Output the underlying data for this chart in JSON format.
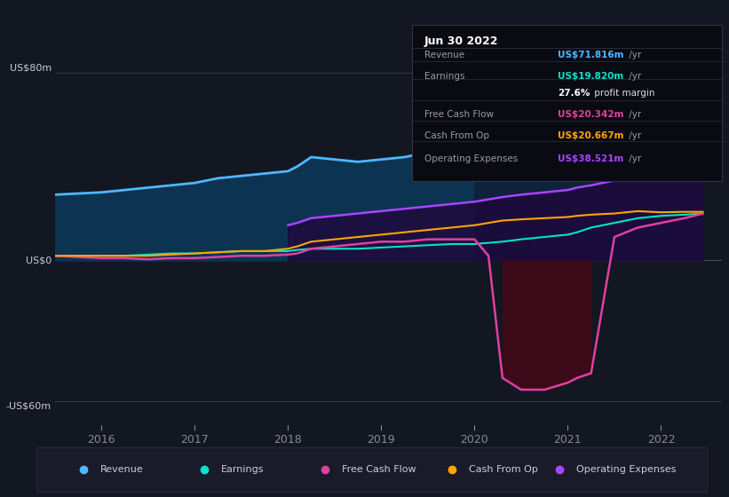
{
  "background_color": "#131722",
  "plot_bg_color": "#131722",
  "title_box": {
    "date": "Jun 30 2022",
    "rows": [
      {
        "label": "Revenue",
        "value": "US$71.816m",
        "value_color": "#4db8ff",
        "suffix": " /yr"
      },
      {
        "label": "Earnings",
        "value": "US$19.820m",
        "value_color": "#00e5c8",
        "suffix": " /yr"
      },
      {
        "label": "",
        "value": "27.6%",
        "value_color": "#ffffff",
        "suffix": " profit margin"
      },
      {
        "label": "Free Cash Flow",
        "value": "US$20.342m",
        "value_color": "#e040a0",
        "suffix": " /yr"
      },
      {
        "label": "Cash From Op",
        "value": "US$20.667m",
        "value_color": "#ffa500",
        "suffix": " /yr"
      },
      {
        "label": "Operating Expenses",
        "value": "US$38.521m",
        "value_color": "#aa44ff",
        "suffix": " /yr"
      }
    ]
  },
  "y_label_top": "US$80m",
  "y_label_zero": "US$0",
  "y_label_bottom": "-US$60m",
  "x_ticks": [
    "2016",
    "2017",
    "2018",
    "2019",
    "2020",
    "2021",
    "2022"
  ],
  "legend": [
    {
      "label": "Revenue",
      "color": "#4db8ff"
    },
    {
      "label": "Earnings",
      "color": "#00e5c8"
    },
    {
      "label": "Free Cash Flow",
      "color": "#e040a0"
    },
    {
      "label": "Cash From Op",
      "color": "#ffa500"
    },
    {
      "label": "Operating Expenses",
      "color": "#aa44ff"
    }
  ],
  "series": {
    "x": [
      2015.5,
      2016.0,
      2016.25,
      2016.5,
      2016.75,
      2017.0,
      2017.25,
      2017.5,
      2017.75,
      2018.0,
      2018.1,
      2018.25,
      2018.5,
      2018.75,
      2019.0,
      2019.25,
      2019.5,
      2019.75,
      2020.0,
      2020.15,
      2020.3,
      2020.5,
      2020.75,
      2021.0,
      2021.1,
      2021.25,
      2021.5,
      2021.75,
      2022.0,
      2022.25,
      2022.45
    ],
    "revenue": [
      28,
      29,
      30,
      31,
      32,
      33,
      35,
      36,
      37,
      38,
      40,
      44,
      43,
      42,
      43,
      44,
      46,
      47,
      48,
      49,
      50,
      52,
      54,
      56,
      58,
      61,
      65,
      68,
      70,
      72,
      72
    ],
    "earnings": [
      2,
      2,
      2,
      2.5,
      3,
      3,
      3.5,
      4,
      4,
      4,
      4.5,
      5,
      5,
      5,
      5.5,
      6,
      6.5,
      7,
      7,
      7.5,
      8,
      9,
      10,
      11,
      12,
      14,
      16,
      18,
      19,
      19.5,
      20
    ],
    "free_cash_flow": [
      2,
      1,
      1,
      0.5,
      1,
      1,
      1.5,
      2,
      2,
      2.5,
      3,
      5,
      6,
      7,
      8,
      8,
      9,
      9,
      9,
      2,
      -50,
      -55,
      -55,
      -52,
      -50,
      -48,
      10,
      14,
      16,
      18,
      20
    ],
    "cash_from_op": [
      2,
      2,
      2,
      2,
      2.5,
      3,
      3.5,
      4,
      4,
      5,
      6,
      8,
      9,
      10,
      11,
      12,
      13,
      14,
      15,
      16,
      17,
      17.5,
      18,
      18.5,
      19,
      19.5,
      20,
      21,
      20.5,
      20.7,
      20.7
    ],
    "operating_expenses": [
      0,
      0,
      0,
      0,
      0,
      0,
      0,
      0,
      0,
      15,
      16,
      18,
      19,
      20,
      21,
      22,
      23,
      24,
      25,
      26,
      27,
      28,
      29,
      30,
      31,
      32,
      34,
      36,
      37,
      38,
      38.5
    ]
  },
  "ylim": [
    -70,
    95
  ],
  "xlim": [
    2015.5,
    2022.65
  ],
  "zero_y": 0,
  "top_y": 80,
  "bot_y": -60,
  "shaded_start": 2020.0
}
